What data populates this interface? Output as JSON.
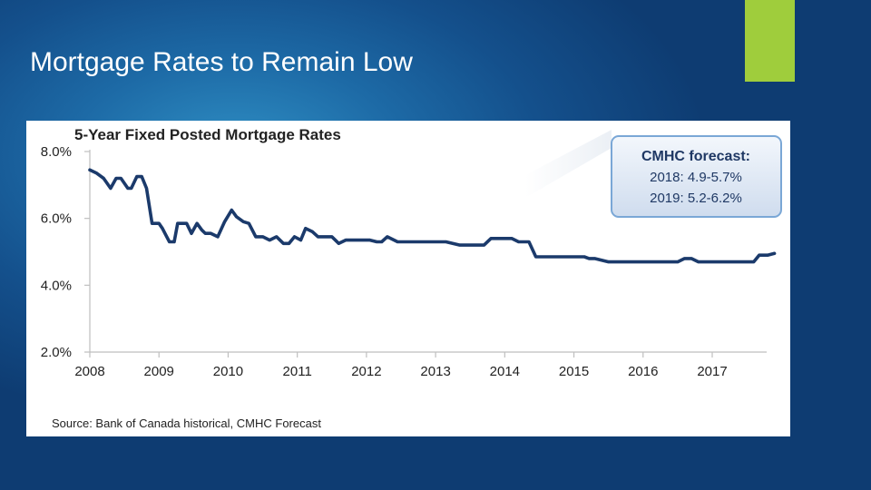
{
  "slide": {
    "title": "Mortgage Rates to Remain Low",
    "accent_color": "#9fcd3c"
  },
  "chart_data": {
    "type": "line",
    "title": "5-Year Fixed Posted Mortgage Rates",
    "source": "Source:  Bank of Canada historical, CMHC Forecast",
    "xlim": [
      2008,
      2017.9
    ],
    "ylim": [
      2.0,
      8.0
    ],
    "x_ticks": [
      "2008",
      "2009",
      "2010",
      "2011",
      "2012",
      "2013",
      "2014",
      "2015",
      "2016",
      "2017"
    ],
    "y_ticks": [
      "2.0%",
      "4.0%",
      "6.0%",
      "8.0%"
    ],
    "line_color": "#1b3a6b",
    "series": [
      {
        "x": [
          2008.0,
          2008.1,
          2008.2,
          2008.3,
          2008.38,
          2008.45,
          2008.55,
          2008.6,
          2008.68,
          2008.75,
          2008.82,
          2008.9,
          2008.95,
          2009.0,
          2009.05,
          2009.1,
          2009.15,
          2009.22,
          2009.27,
          2009.35,
          2009.4,
          2009.47,
          2009.55,
          2009.62,
          2009.67,
          2009.75,
          2009.85,
          2009.95,
          2010.05,
          2010.12,
          2010.22,
          2010.3,
          2010.4,
          2010.5,
          2010.6,
          2010.7,
          2010.8,
          2010.88,
          2010.96,
          2011.05,
          2011.12,
          2011.22,
          2011.3,
          2011.4,
          2011.5,
          2011.6,
          2011.7,
          2011.8,
          2011.92,
          2012.05,
          2012.15,
          2012.22,
          2012.3,
          2012.45,
          2012.6,
          2012.8,
          2013.0,
          2013.15,
          2013.35,
          2013.5,
          2013.6,
          2013.7,
          2013.8,
          2013.9,
          2014.0,
          2014.1,
          2014.2,
          2014.35,
          2014.45,
          2014.6,
          2014.8,
          2015.0,
          2015.15,
          2015.22,
          2015.3,
          2015.5,
          2016.0,
          2016.4,
          2016.5,
          2016.6,
          2016.7,
          2016.8,
          2016.9,
          2017.1,
          2017.3,
          2017.5,
          2017.6,
          2017.68,
          2017.8,
          2017.9
        ],
        "y": [
          7.45,
          7.35,
          7.2,
          6.9,
          7.2,
          7.2,
          6.9,
          6.9,
          7.25,
          7.25,
          6.9,
          5.85,
          5.85,
          5.85,
          5.7,
          5.5,
          5.3,
          5.3,
          5.85,
          5.85,
          5.85,
          5.55,
          5.85,
          5.65,
          5.55,
          5.55,
          5.45,
          5.9,
          6.25,
          6.05,
          5.9,
          5.85,
          5.45,
          5.45,
          5.35,
          5.45,
          5.25,
          5.25,
          5.45,
          5.35,
          5.7,
          5.6,
          5.45,
          5.45,
          5.45,
          5.25,
          5.35,
          5.35,
          5.35,
          5.35,
          5.3,
          5.3,
          5.45,
          5.3,
          5.3,
          5.3,
          5.3,
          5.3,
          5.2,
          5.2,
          5.2,
          5.2,
          5.4,
          5.4,
          5.4,
          5.4,
          5.3,
          5.3,
          4.85,
          4.85,
          4.85,
          4.85,
          4.85,
          4.8,
          4.8,
          4.7,
          4.7,
          4.7,
          4.7,
          4.8,
          4.8,
          4.7,
          4.7,
          4.7,
          4.7,
          4.7,
          4.7,
          4.9,
          4.9,
          4.95
        ]
      }
    ],
    "annotation": {
      "title": "CMHC forecast:",
      "lines": [
        "2018: 4.9-5.7%",
        "2019: 5.2-6.2%"
      ],
      "border_color": "#7aa7d6",
      "background_color": "#e6eef8"
    },
    "grid": false,
    "legend": "none"
  }
}
